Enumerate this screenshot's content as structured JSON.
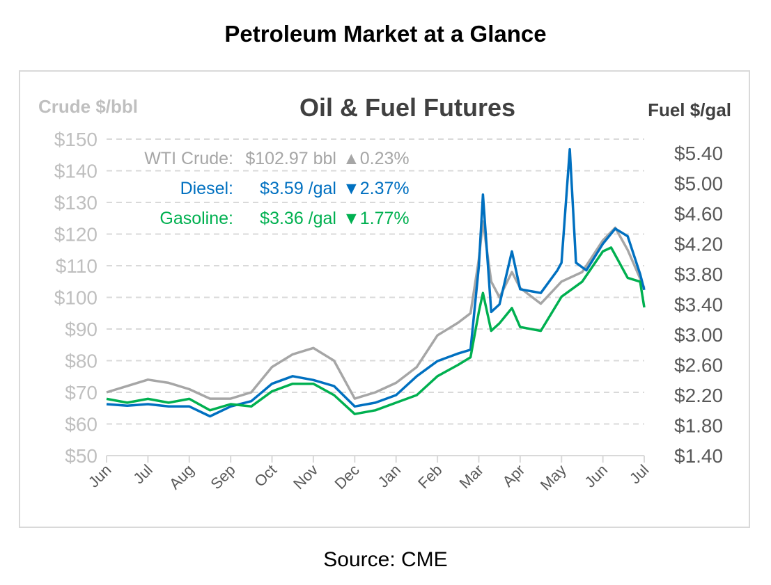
{
  "page": {
    "title": "Petroleum Market at a Glance",
    "source": "Source: CME"
  },
  "chart_data": {
    "type": "line",
    "title": "Oil & Fuel Futures",
    "ylabel_left": "Crude $/bbl",
    "ylabel_right": "Fuel $/gal",
    "ylim_left": [
      50,
      150
    ],
    "ylim_right": [
      1.4,
      5.4
    ],
    "left_ticks": [
      "$50",
      "$60",
      "$70",
      "$80",
      "$90",
      "$100",
      "$110",
      "$120",
      "$130",
      "$140",
      "$150"
    ],
    "right_ticks": [
      "$1.40",
      "$1.80",
      "$2.20",
      "$2.60",
      "$3.00",
      "$3.40",
      "$3.80",
      "$4.20",
      "$4.60",
      "$5.00",
      "$5.40"
    ],
    "categories": [
      "Jun",
      "Jul",
      "Aug",
      "Sep",
      "Oct",
      "Nov",
      "Dec",
      "Jan",
      "Feb",
      "Mar",
      "Apr",
      "May",
      "Jun",
      "Jul"
    ],
    "grid": true,
    "legend": [
      {
        "label": "WTI Crude:",
        "price": "$102.97 bbl",
        "change": "▲0.23%",
        "color": "#a6a6a6"
      },
      {
        "label": "Diesel:",
        "price": "$3.59 /gal",
        "change": "▼2.37%",
        "color": "#0070c0"
      },
      {
        "label": "Gasoline:",
        "price": "$3.36 /gal",
        "change": "▼1.77%",
        "color": "#00b050"
      }
    ],
    "series": [
      {
        "name": "WTI Crude",
        "axis": "left",
        "color": "#a6a6a6",
        "points": [
          [
            0,
            70
          ],
          [
            0.5,
            72
          ],
          [
            1,
            74
          ],
          [
            1.5,
            73
          ],
          [
            2,
            71
          ],
          [
            2.5,
            68
          ],
          [
            3,
            68
          ],
          [
            3.5,
            70
          ],
          [
            4,
            78
          ],
          [
            4.5,
            82
          ],
          [
            5,
            84
          ],
          [
            5.5,
            80
          ],
          [
            6,
            68
          ],
          [
            6.5,
            70
          ],
          [
            7,
            73
          ],
          [
            7.5,
            78
          ],
          [
            8,
            88
          ],
          [
            8.5,
            92
          ],
          [
            8.8,
            95
          ],
          [
            9,
            112
          ],
          [
            9.1,
            124
          ],
          [
            9.3,
            105
          ],
          [
            9.5,
            100
          ],
          [
            9.8,
            108
          ],
          [
            10,
            103
          ],
          [
            10.5,
            98
          ],
          [
            11,
            105
          ],
          [
            11.5,
            108
          ],
          [
            12,
            118
          ],
          [
            12.3,
            122
          ],
          [
            12.6,
            115
          ],
          [
            13,
            103
          ]
        ]
      },
      {
        "name": "Diesel",
        "axis": "right",
        "color": "#0070c0",
        "points": [
          [
            0,
            2.08
          ],
          [
            0.5,
            2.06
          ],
          [
            1,
            2.08
          ],
          [
            1.5,
            2.05
          ],
          [
            2,
            2.05
          ],
          [
            2.5,
            1.92
          ],
          [
            3,
            2.05
          ],
          [
            3.5,
            2.12
          ],
          [
            4,
            2.35
          ],
          [
            4.5,
            2.45
          ],
          [
            5,
            2.4
          ],
          [
            5.5,
            2.32
          ],
          [
            6,
            2.05
          ],
          [
            6.5,
            2.1
          ],
          [
            7,
            2.2
          ],
          [
            7.5,
            2.45
          ],
          [
            8,
            2.65
          ],
          [
            8.5,
            2.75
          ],
          [
            8.8,
            2.8
          ],
          [
            9,
            3.9
          ],
          [
            9.1,
            4.85
          ],
          [
            9.3,
            3.3
          ],
          [
            9.5,
            3.4
          ],
          [
            9.8,
            4.1
          ],
          [
            10,
            3.6
          ],
          [
            10.5,
            3.55
          ],
          [
            10.9,
            3.85
          ],
          [
            11,
            3.95
          ],
          [
            11.2,
            5.45
          ],
          [
            11.35,
            3.95
          ],
          [
            11.6,
            3.85
          ],
          [
            12,
            4.2
          ],
          [
            12.3,
            4.4
          ],
          [
            12.6,
            4.3
          ],
          [
            12.9,
            3.8
          ],
          [
            13,
            3.59
          ]
        ]
      },
      {
        "name": "Gasoline",
        "axis": "right",
        "color": "#00b050",
        "points": [
          [
            0,
            2.15
          ],
          [
            0.5,
            2.1
          ],
          [
            1,
            2.15
          ],
          [
            1.5,
            2.1
          ],
          [
            2,
            2.15
          ],
          [
            2.5,
            2.0
          ],
          [
            3,
            2.08
          ],
          [
            3.5,
            2.05
          ],
          [
            4,
            2.25
          ],
          [
            4.5,
            2.35
          ],
          [
            5,
            2.35
          ],
          [
            5.5,
            2.2
          ],
          [
            6,
            1.95
          ],
          [
            6.5,
            2.0
          ],
          [
            7,
            2.1
          ],
          [
            7.5,
            2.2
          ],
          [
            8,
            2.45
          ],
          [
            8.5,
            2.6
          ],
          [
            8.8,
            2.7
          ],
          [
            9,
            3.3
          ],
          [
            9.1,
            3.55
          ],
          [
            9.3,
            3.05
          ],
          [
            9.5,
            3.15
          ],
          [
            9.8,
            3.35
          ],
          [
            10,
            3.1
          ],
          [
            10.5,
            3.05
          ],
          [
            11,
            3.5
          ],
          [
            11.5,
            3.7
          ],
          [
            12,
            4.1
          ],
          [
            12.2,
            4.15
          ],
          [
            12.6,
            3.75
          ],
          [
            12.9,
            3.7
          ],
          [
            13,
            3.36
          ]
        ]
      }
    ]
  }
}
